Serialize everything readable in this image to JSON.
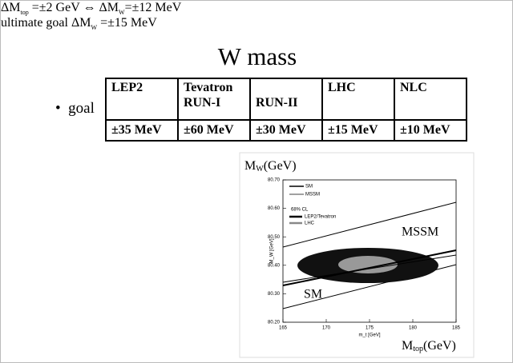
{
  "title": "W mass",
  "bullet": "goal",
  "table": {
    "header": [
      [
        "LEP2"
      ],
      [
        "Tevatron",
        "RUN-I"
      ],
      [
        "",
        "RUN-II"
      ],
      [
        "LHC"
      ],
      [
        "NLC"
      ]
    ],
    "values": [
      "±35 MeV",
      "±60 MeV",
      "±30 MeV",
      "±15 MeV",
      "±10 MeV"
    ]
  },
  "notes": [
    [
      "ΔM",
      "top",
      " =±2 GeV ⇔ ΔM",
      "W",
      "=±12 MeV"
    ],
    [
      "ultimate goal ΔM",
      "W",
      " =±15 MeV"
    ]
  ],
  "figure": {
    "ylabel": [
      "M",
      "W",
      "(GeV)"
    ],
    "xlabel": [
      "M",
      "top",
      "(GeV)"
    ],
    "inner_ylabel": "M_W [GeV]",
    "inner_xlabel": "m_t [GeV]",
    "yticks": [
      {
        "value": 80.2,
        "label": "80.20"
      },
      {
        "value": 80.3,
        "label": "80.30"
      },
      {
        "value": 80.4,
        "label": "80.40"
      },
      {
        "value": 80.5,
        "label": "80.50"
      },
      {
        "value": 80.6,
        "label": "80.60"
      },
      {
        "value": 80.7,
        "label": "80.70"
      }
    ],
    "ylim": [
      80.2,
      80.7
    ],
    "xticks": [
      165,
      170,
      175,
      180,
      185
    ],
    "xlim": [
      165,
      185
    ],
    "legend": [
      "SM",
      "MSSM"
    ],
    "cl_label": "68% CL",
    "cl_legend": [
      "LEP2/Tevatron",
      "LHC"
    ],
    "annotations": [
      "MSSM",
      "SM"
    ]
  }
}
